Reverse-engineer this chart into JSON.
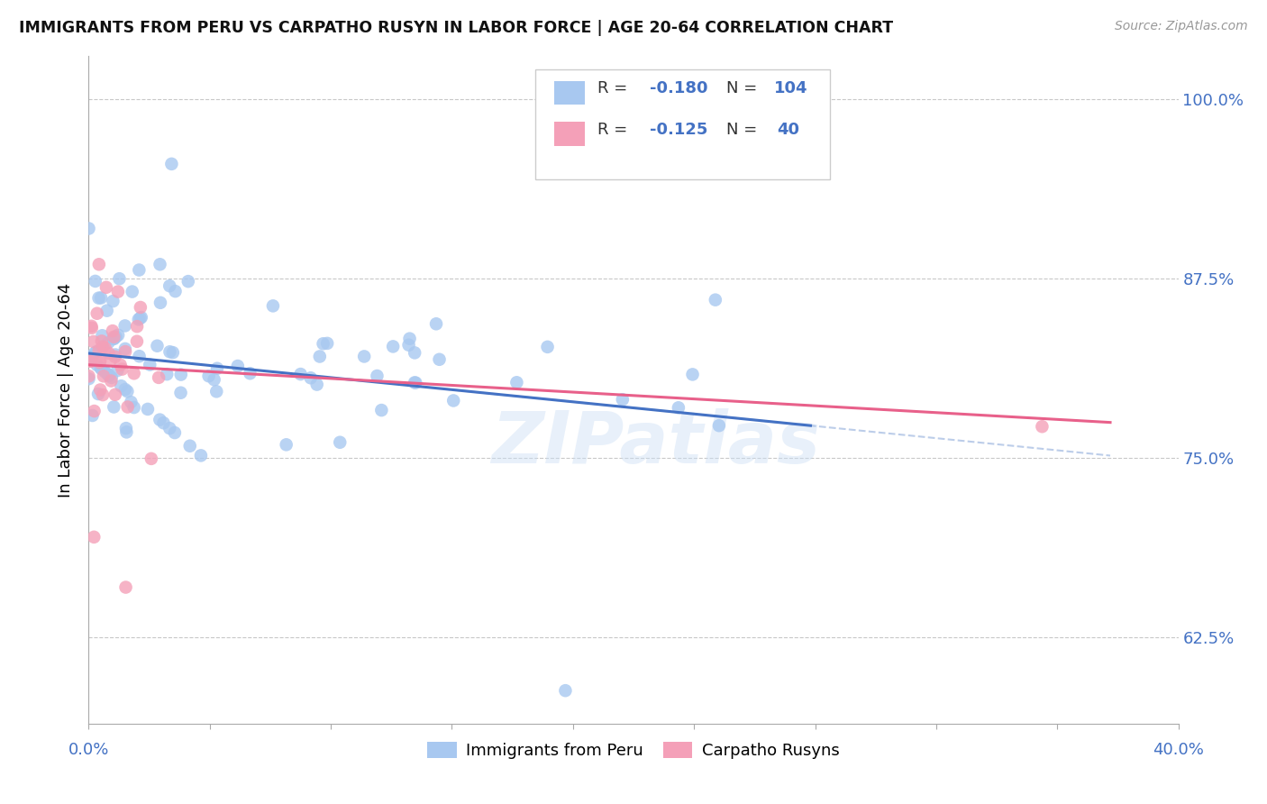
{
  "title": "IMMIGRANTS FROM PERU VS CARPATHO RUSYN IN LABOR FORCE | AGE 20-64 CORRELATION CHART",
  "source": "Source: ZipAtlas.com",
  "ylabel": "In Labor Force | Age 20-64",
  "ytick_labels": [
    "100.0%",
    "87.5%",
    "75.0%",
    "62.5%"
  ],
  "ytick_values": [
    1.0,
    0.875,
    0.75,
    0.625
  ],
  "xlim": [
    0.0,
    0.4
  ],
  "ylim": [
    0.565,
    1.03
  ],
  "color_peru": "#a8c8f0",
  "color_rusyn": "#f4a0b8",
  "color_peru_line": "#4472c4",
  "color_rusyn_line": "#e8608a",
  "color_axis_text": "#4472c4",
  "watermark": "ZIPatlas",
  "legend_r1_label": "R = ",
  "legend_r1_val": "-0.180",
  "legend_n1_label": "N = ",
  "legend_n1_val": "104",
  "legend_r2_label": "R = ",
  "legend_r2_val": "-0.125",
  "legend_n2_label": "N =  ",
  "legend_n2_val": "40"
}
